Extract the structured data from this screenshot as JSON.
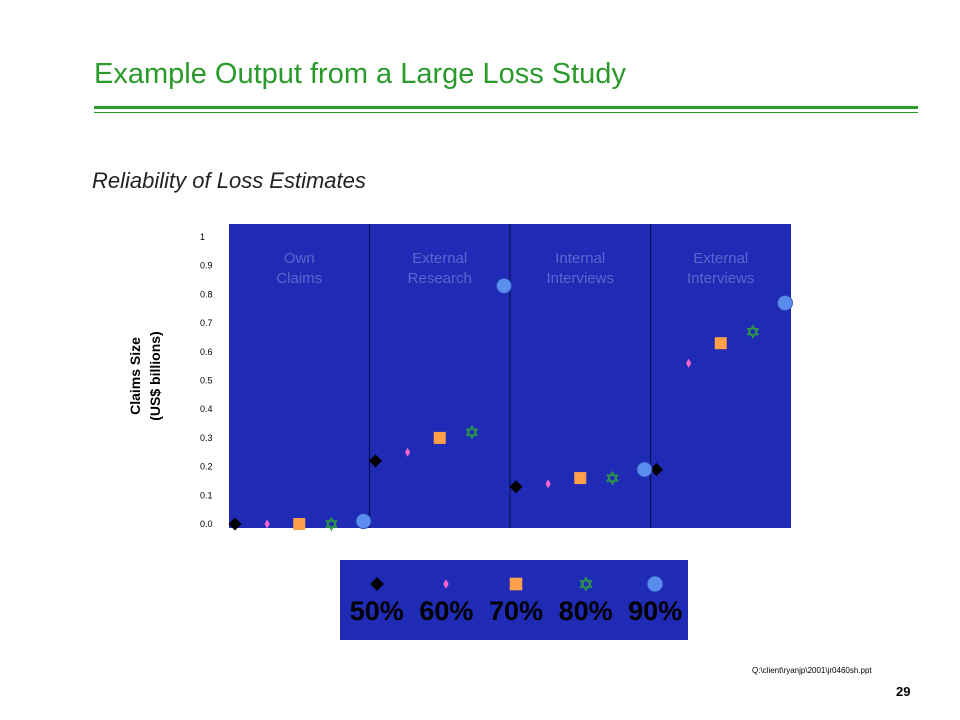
{
  "slide": {
    "title": "Example Output from a Large Loss Study",
    "subtitle": "Reliability of Loss Estimates",
    "footer_path": "Q:\\client\\ryanjp\\2001\\jr0460sh.ppt",
    "page_number": "29"
  },
  "colors": {
    "title_green": "#2a9a2a",
    "plot_background": "#1f2bb5",
    "legend_background": "#1f2bb5",
    "panel_label_text": "#5a66d0"
  },
  "chart_data": {
    "type": "scatter",
    "title": "",
    "ylabel_lines": [
      "Claims Size",
      "(US$ billions)"
    ],
    "y_ticks": [
      "1",
      "0.9",
      "0.8",
      "0.7",
      "0.6",
      "0.5",
      "0.4",
      "0.3",
      "0.2",
      "0.1",
      "0.0"
    ],
    "ylim": [
      0,
      1
    ],
    "grid": false,
    "legend_placement": "bottom",
    "categories": [
      [
        "Own",
        "Claims"
      ],
      [
        "External",
        "Research"
      ],
      [
        "Internal",
        "Interviews"
      ],
      [
        "External",
        "Interviews"
      ]
    ],
    "series": [
      {
        "name": "50%",
        "marker": "diamond",
        "color": "#000000",
        "values": [
          0.0,
          0.22,
          0.13,
          0.19
        ]
      },
      {
        "name": "60%",
        "marker": "small-diamond",
        "color": "#ff66cc",
        "values": [
          0.0,
          0.25,
          0.14,
          0.56
        ]
      },
      {
        "name": "70%",
        "marker": "square",
        "color": "#ff9f4a",
        "values": [
          0.0,
          0.3,
          0.16,
          0.63
        ]
      },
      {
        "name": "80%",
        "marker": "star-of-david",
        "color": "#2fa33a",
        "values": [
          0.0,
          0.32,
          0.16,
          0.67
        ]
      },
      {
        "name": "90%",
        "marker": "circle",
        "color": "#5b8def",
        "values": [
          0.01,
          0.83,
          0.19,
          0.77
        ]
      }
    ]
  }
}
